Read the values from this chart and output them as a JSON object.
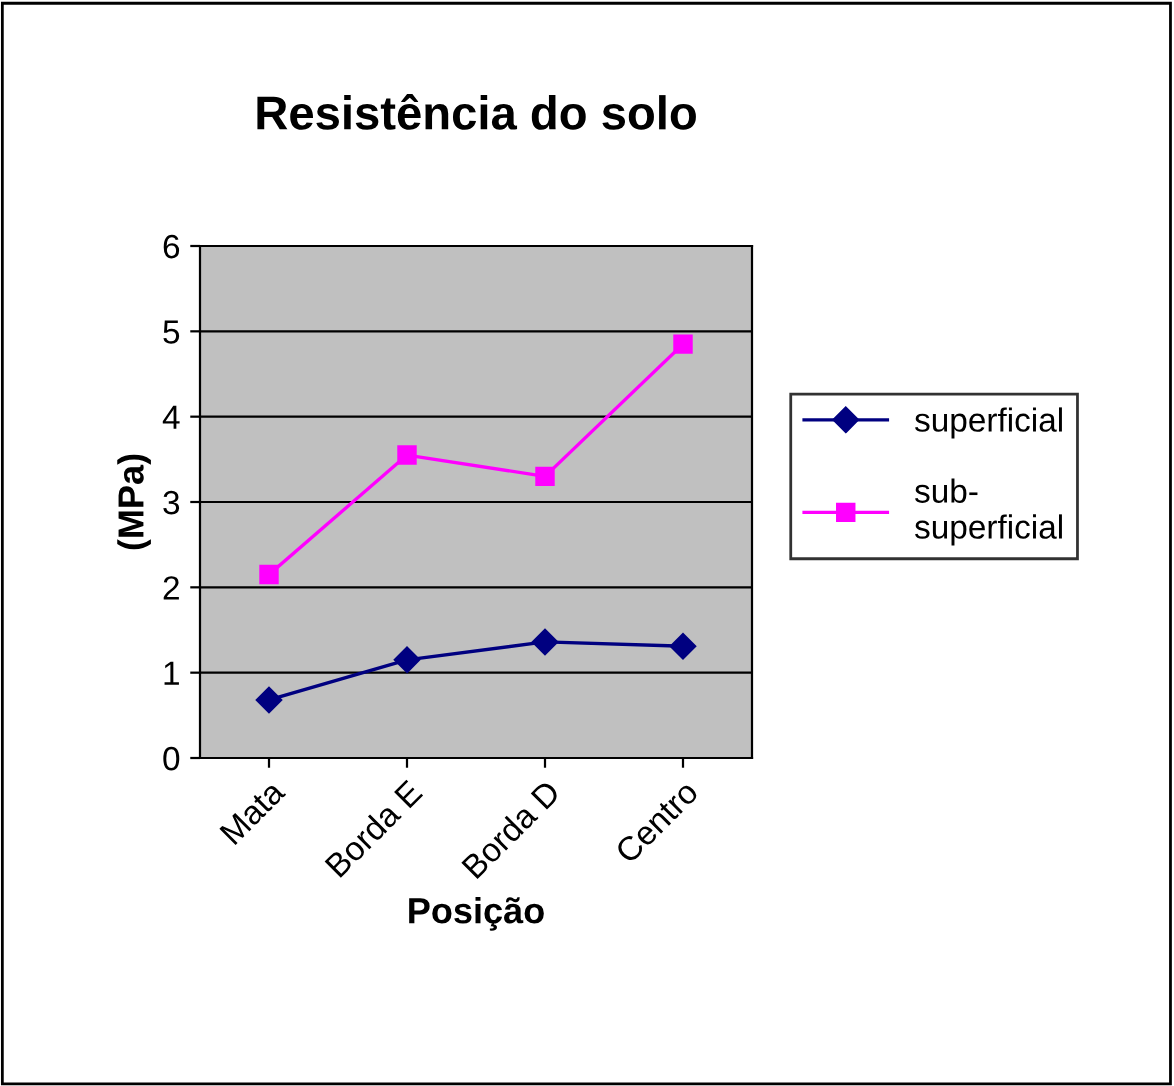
{
  "chart_data": {
    "type": "line",
    "title": "Resistência do solo",
    "xlabel": "Posição",
    "ylabel": "(MPa)",
    "categories": [
      "Mata",
      "Borda E",
      "Borda D",
      "Centro"
    ],
    "series": [
      {
        "name": "superficial",
        "color": "#000080",
        "marker": "diamond",
        "values": [
          0.68,
          1.15,
          1.36,
          1.31
        ]
      },
      {
        "name": "sub-\nsuperficial",
        "color": "#ff00ff",
        "marker": "square",
        "values": [
          2.15,
          3.55,
          3.3,
          4.85
        ]
      }
    ],
    "ylim": [
      0,
      6
    ],
    "yticks": [
      0,
      1,
      2,
      3,
      4,
      5,
      6
    ],
    "grid": "y",
    "legend": "right",
    "line_style": "solid"
  }
}
